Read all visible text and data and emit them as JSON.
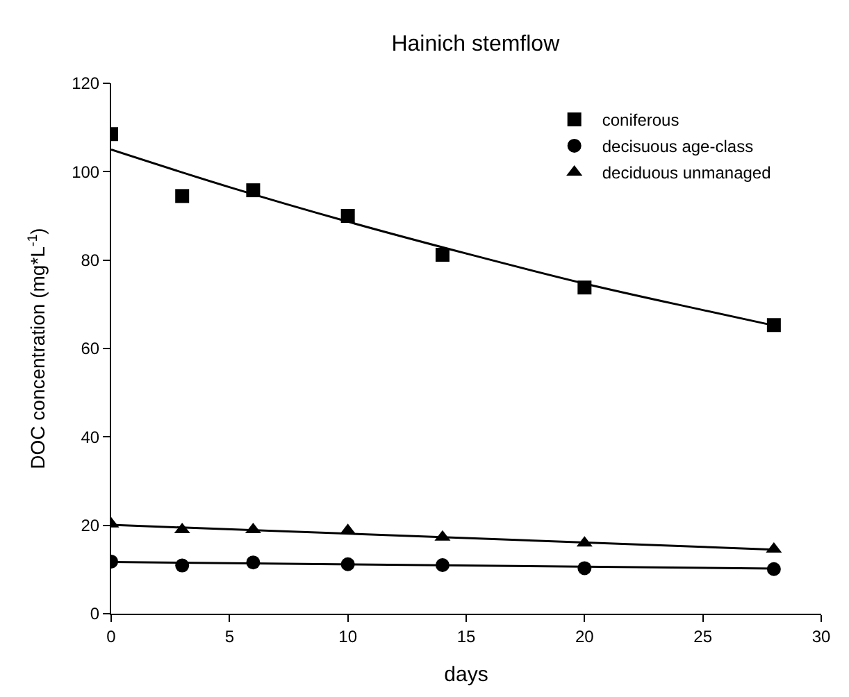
{
  "chart_data": {
    "type": "scatter",
    "title": "Hainich stemflow",
    "xlabel": "days",
    "ylabel": "DOC concentration (mg*L$^{-1}$)",
    "x": [
      0,
      3,
      6,
      10,
      14,
      20,
      28
    ],
    "series": [
      {
        "name": "coniferous",
        "color": "#000000",
        "marker": "square",
        "values": [
          108.5,
          94.5,
          95.8,
          90,
          81.2,
          73.8,
          65.3
        ]
      },
      {
        "name": "decisuous age-class",
        "color": "#000000",
        "marker": "circle",
        "values": [
          11.8,
          10.9,
          11.6,
          11.2,
          11.0,
          10.3,
          10.1
        ]
      },
      {
        "name": "deciduous unmanaged",
        "color": "#000000",
        "marker": "triangle",
        "values": [
          20.3,
          19.0,
          19.0,
          18.8,
          17.3,
          16.0,
          14.6
        ]
      },
      {
        "type": "line",
        "color": "#000000",
        "x": [
          0,
          5,
          10,
          15,
          20,
          25,
          28
        ],
        "values": [
          105,
          96.5,
          88.7,
          81.5,
          74.7,
          68.7,
          65.2
        ]
      },
      {
        "type": "line",
        "color": "#000000",
        "x": [
          0,
          28
        ],
        "values": [
          11.7,
          10.2
        ]
      },
      {
        "type": "line",
        "color": "#000000",
        "x": [
          0,
          28
        ],
        "values": [
          20.1,
          14.5
        ]
      }
    ],
    "xlim": [
      0,
      30
    ],
    "xticks": [
      0,
      5,
      10,
      15,
      20,
      25,
      30
    ],
    "ylim": [
      0,
      120
    ],
    "yticks": [
      0,
      20,
      40,
      60,
      80,
      100,
      120
    ],
    "legend": "top right"
  }
}
